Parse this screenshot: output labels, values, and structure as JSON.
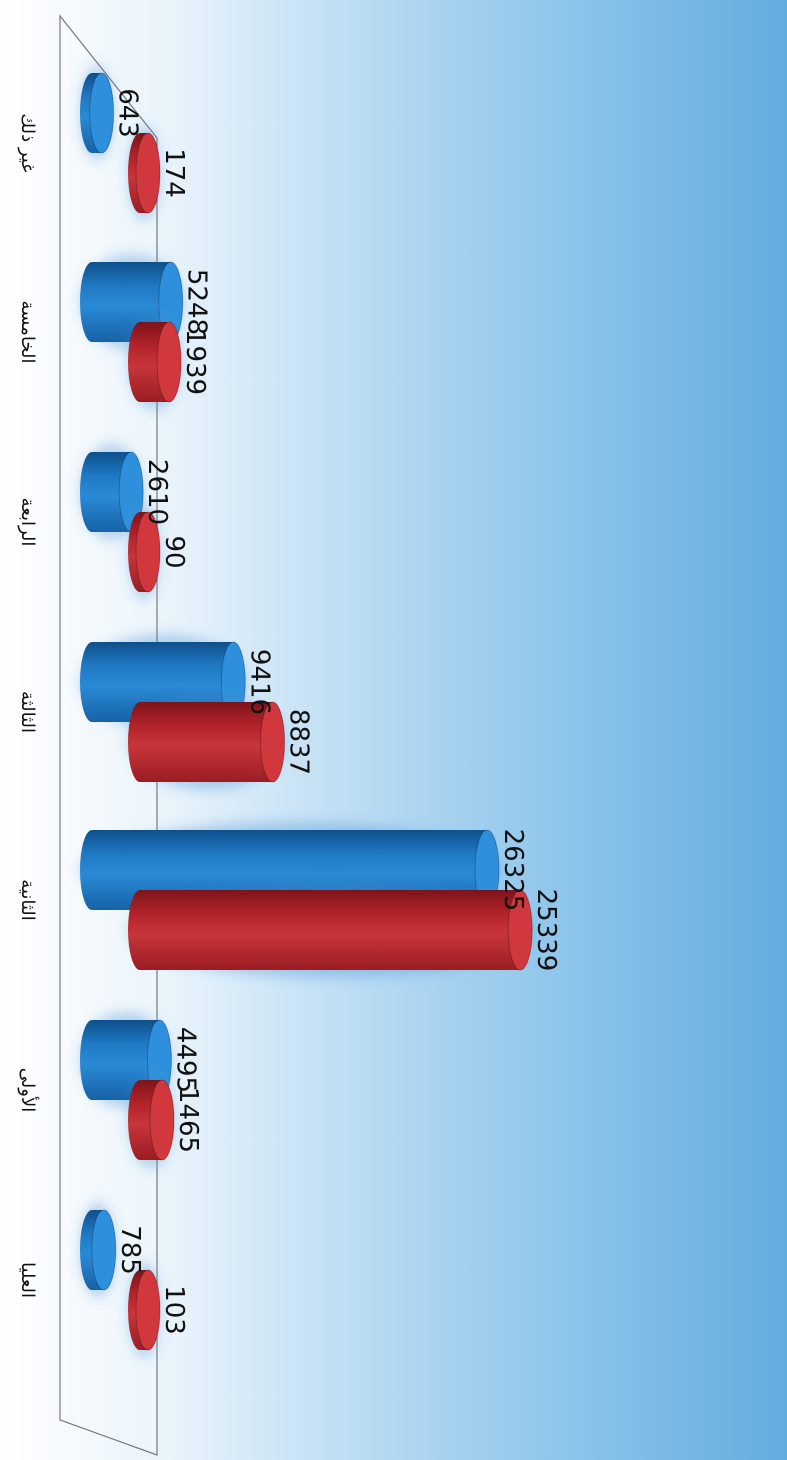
{
  "chart_data": {
    "type": "bar",
    "orientation": "horizontal",
    "style": "3d-cylinder",
    "rotated_image": "90deg-clockwise",
    "categories": [
      "غير ذلك",
      "الخامسة",
      "الرابعة",
      "الثالثة",
      "الثانية",
      "الأولى",
      "العليا"
    ],
    "series": [
      {
        "values": [
          643,
          5248,
          2610,
          9416,
          26325,
          4495,
          785
        ]
      },
      {
        "values": [
          174,
          1939,
          90,
          8837,
          25339,
          1465,
          103
        ]
      }
    ],
    "value_labels": [
      [
        "643",
        "5248",
        "2610",
        "9416",
        "26325",
        "4495",
        "785"
      ],
      [
        "174",
        "1939",
        "90",
        "8837",
        "25339",
        "1465",
        "103"
      ]
    ],
    "colors": {
      "series_1": "#1f79c4",
      "series_2": "#c0272d",
      "background_left": "#ffffff",
      "background_right": "#62ade0",
      "floor_stroke": "#7a7a7a"
    },
    "grid": false,
    "legend": "none"
  }
}
